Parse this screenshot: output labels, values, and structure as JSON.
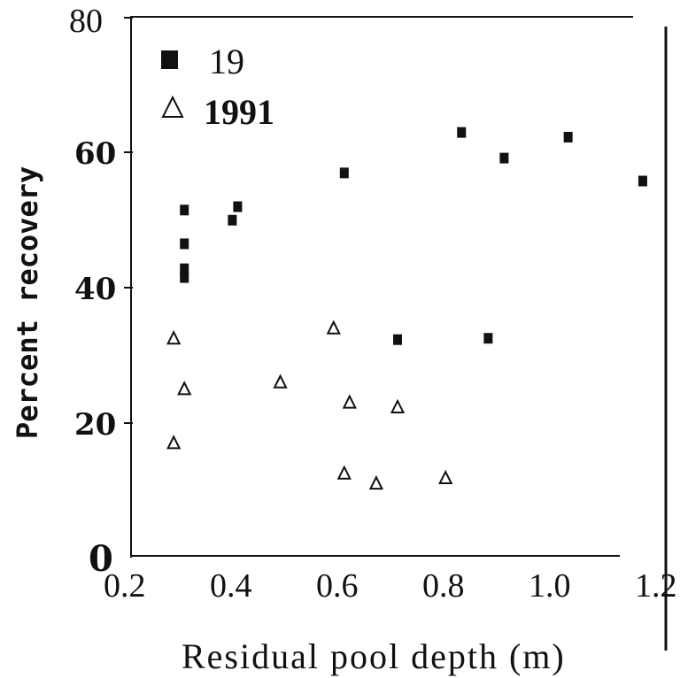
{
  "chart_data": {
    "type": "scatter",
    "title": "",
    "xlabel": "Residual pool depth (m)",
    "ylabel": "Percent recovery",
    "xlim": [
      0.2,
      1.2
    ],
    "ylim": [
      0,
      80
    ],
    "x_ticks": [
      "0.2",
      "0.4",
      "0.6",
      "0.8",
      "1.0",
      "1.2"
    ],
    "y_ticks": [
      "0",
      "20",
      "40",
      "60",
      "80"
    ],
    "legend": {
      "placement": "top-left"
    },
    "grid": false,
    "series": [
      {
        "name": "19",
        "marker": "filled-square",
        "color": "#111111",
        "points": [
          [
            0.3,
            51.5
          ],
          [
            0.3,
            46.5
          ],
          [
            0.3,
            42.8
          ],
          [
            0.3,
            41.5
          ],
          [
            0.39,
            50.0
          ],
          [
            0.4,
            52.0
          ],
          [
            0.6,
            57.0
          ],
          [
            0.7,
            32.3
          ],
          [
            0.82,
            63.0
          ],
          [
            0.87,
            32.5
          ],
          [
            0.9,
            59.2
          ],
          [
            1.02,
            62.3
          ],
          [
            1.16,
            55.8
          ]
        ]
      },
      {
        "name": "1991",
        "marker": "open-triangle",
        "color": "#111111",
        "points": [
          [
            0.28,
            32.5
          ],
          [
            0.28,
            17.0
          ],
          [
            0.3,
            25.0
          ],
          [
            0.48,
            26.0
          ],
          [
            0.58,
            34.0
          ],
          [
            0.6,
            12.5
          ],
          [
            0.61,
            23.0
          ],
          [
            0.66,
            11.0
          ],
          [
            0.7,
            22.3
          ],
          [
            0.79,
            11.8
          ]
        ]
      }
    ]
  }
}
